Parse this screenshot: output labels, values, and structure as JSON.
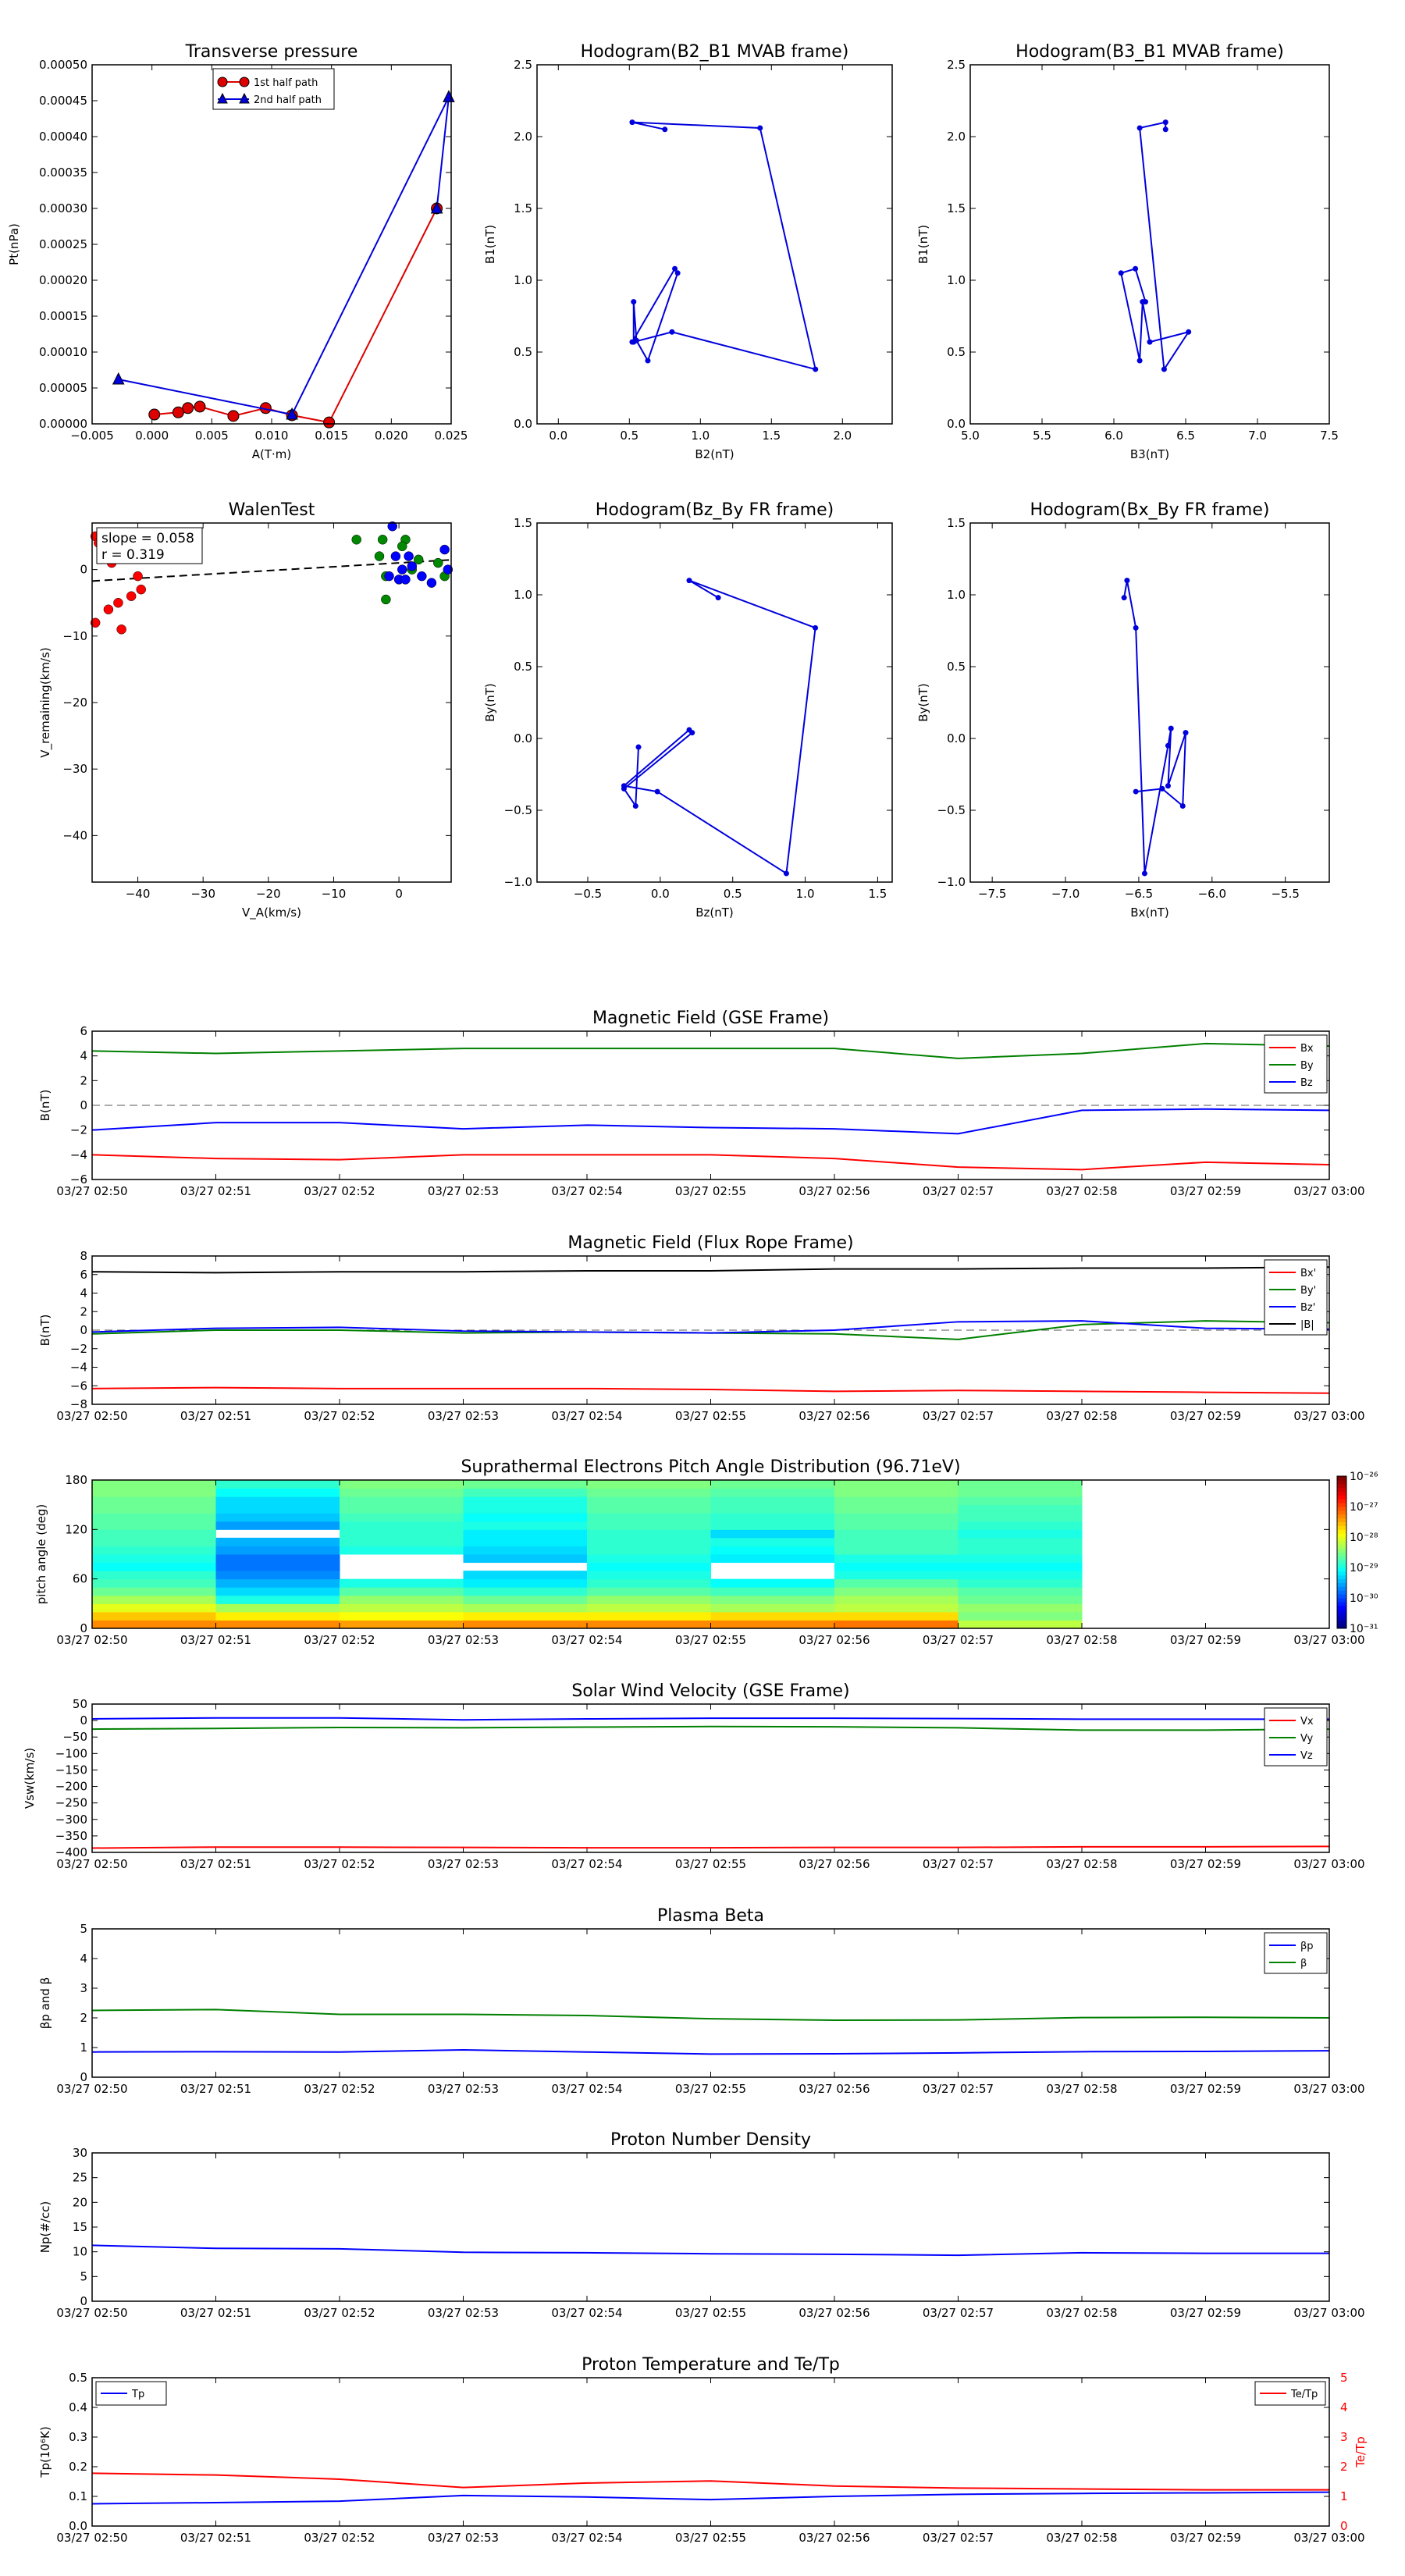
{
  "figure": {
    "time_ticks": [
      "03/27 02:50",
      "03/27 02:51",
      "03/27 02:52",
      "03/27 02:53",
      "03/27 02:54",
      "03/27 02:55",
      "03/27 02:56",
      "03/27 02:57",
      "03/27 02:58",
      "03/27 02:59",
      "03/27 03:00"
    ]
  },
  "chart_data": [
    {
      "id": "transverse",
      "type": "line",
      "title": "Transverse pressure",
      "xlabel": "A(T·m)",
      "ylabel": "Pt(nPa)",
      "xlim": [
        -0.005,
        0.025
      ],
      "ylim": [
        0,
        0.0005
      ],
      "xticks": [
        "−0.005",
        "0.000",
        "0.005",
        "0.010",
        "0.015",
        "0.020",
        "0.025"
      ],
      "yticks": [
        "0.00000",
        "0.00005",
        "0.00010",
        "0.00015",
        "0.00020",
        "0.00025",
        "0.00030",
        "0.00035",
        "0.00040",
        "0.00045",
        "0.00050"
      ],
      "legend": "upper-center",
      "series": [
        {
          "name": "1st half path",
          "color": "#dd0000",
          "marker": "circle",
          "x": [
            0.0238,
            0.0148,
            0.0117,
            0.0095,
            0.0068,
            0.004,
            0.003,
            0.0022,
            0.0002
          ],
          "y": [
            0.0003,
            2e-06,
            1.2e-05,
            2.2e-05,
            1.1e-05,
            2.4e-05,
            2.2e-05,
            1.6e-05,
            1.3e-05
          ]
        },
        {
          "name": "2nd half path",
          "color": "#0000dd",
          "marker": "triangle",
          "x": [
            -0.0028,
            0.0117,
            0.0248,
            0.0238
          ],
          "y": [
            6.2e-05,
            1.3e-05,
            0.000455,
            0.0003
          ]
        }
      ]
    },
    {
      "id": "hodo_b2b1",
      "type": "line",
      "title": "Hodogram(B2_B1 MVAB frame)",
      "xlabel": "B2(nT)",
      "ylabel": "B1(nT)",
      "xlim": [
        -0.15,
        2.35
      ],
      "ylim": [
        0,
        2.5
      ],
      "xticks": [
        "0.0",
        "0.5",
        "1.0",
        "1.5",
        "2.0"
      ],
      "yticks": [
        "0.0",
        "0.5",
        "1.0",
        "1.5",
        "2.0",
        "2.5"
      ],
      "series": [
        {
          "name": "",
          "color": "#0000dd",
          "marker": "dot",
          "x": [
            0.75,
            0.52,
            1.42,
            1.81,
            0.8,
            0.53,
            0.53,
            0.55,
            0.63,
            0.84,
            0.82,
            0.52
          ],
          "y": [
            2.05,
            2.1,
            2.06,
            0.38,
            0.64,
            0.57,
            0.85,
            0.58,
            0.44,
            1.05,
            1.08,
            0.57
          ]
        }
      ]
    },
    {
      "id": "hodo_b3b1",
      "type": "line",
      "title": "Hodogram(B3_B1 MVAB frame)",
      "xlabel": "B3(nT)",
      "ylabel": "B1(nT)",
      "xlim": [
        5.0,
        7.5
      ],
      "ylim": [
        0,
        2.5
      ],
      "xticks": [
        "5.0",
        "5.5",
        "6.0",
        "6.5",
        "7.0",
        "7.5"
      ],
      "yticks": [
        "0.0",
        "0.5",
        "1.0",
        "1.5",
        "2.0",
        "2.5"
      ],
      "series": [
        {
          "name": "",
          "color": "#0000dd",
          "marker": "dot",
          "x": [
            6.36,
            6.36,
            6.18,
            6.35,
            6.52,
            6.25,
            6.2,
            6.18,
            6.05,
            6.15,
            6.22
          ],
          "y": [
            2.05,
            2.1,
            2.06,
            0.38,
            0.64,
            0.57,
            0.85,
            0.44,
            1.05,
            1.08,
            0.85
          ]
        }
      ]
    },
    {
      "id": "walen",
      "type": "scatter",
      "title": "WalenTest",
      "xlabel": "V_A(km/s)",
      "ylabel": "V_remaining(km/s)",
      "xlim": [
        -47,
        8
      ],
      "ylim": [
        -47,
        7
      ],
      "xticks": [
        "−40",
        "−30",
        "−20",
        "−10",
        "0"
      ],
      "yticks": [
        "−40",
        "−30",
        "−20",
        "−10",
        "0"
      ],
      "annotations": [
        "slope = 0.058",
        "r = 0.319"
      ],
      "fit": {
        "slope": 0.058,
        "intercept": 1.0
      },
      "series": [
        {
          "name": "",
          "color": "#ff0000",
          "x": [
            -46.5,
            -46,
            -45.5,
            -44.5,
            -43,
            -42.5,
            -41,
            -40,
            -39.5,
            -46.5,
            -44
          ],
          "y": [
            5,
            4,
            3,
            -6,
            -5,
            -9,
            -4,
            -1,
            -3,
            -8,
            1
          ]
        },
        {
          "name": "",
          "color": "#008800",
          "x": [
            -6.5,
            -2.5,
            -2,
            -2,
            1,
            3,
            6,
            7,
            -3,
            0.5,
            2
          ],
          "y": [
            4.5,
            4.5,
            -1,
            -4.5,
            4.5,
            1.5,
            1,
            -1,
            2,
            3.5,
            0
          ]
        },
        {
          "name": "",
          "color": "#0000ff",
          "x": [
            -1,
            -0.5,
            0,
            0.5,
            1,
            2,
            3.5,
            5,
            7,
            7.5,
            1.5,
            -1.5
          ],
          "y": [
            6.5,
            2,
            -1.5,
            0,
            -1.5,
            0.5,
            -1,
            -2,
            3,
            0,
            2,
            -1
          ]
        }
      ]
    },
    {
      "id": "hodo_bzby",
      "type": "line",
      "title": "Hodogram(Bz_By FR frame)",
      "xlabel": "Bz(nT)",
      "ylabel": "By(nT)",
      "xlim": [
        -0.85,
        1.6
      ],
      "ylim": [
        -1,
        1.5
      ],
      "xticks": [
        "−0.5",
        "0.0",
        "0.5",
        "1.0",
        "1.5"
      ],
      "yticks": [
        "−1.0",
        "−0.5",
        "0.0",
        "0.5",
        "1.0",
        "1.5"
      ],
      "series": [
        {
          "name": "",
          "color": "#0000dd",
          "marker": "dot",
          "x": [
            0.4,
            0.2,
            1.07,
            0.87,
            -0.02,
            -0.25,
            0.2,
            0.22,
            -0.25,
            -0.17,
            -0.15
          ],
          "y": [
            0.98,
            1.1,
            0.77,
            -0.94,
            -0.37,
            -0.33,
            0.06,
            0.04,
            -0.35,
            -0.47,
            -0.06
          ]
        }
      ]
    },
    {
      "id": "hodo_bxby",
      "type": "line",
      "title": "Hodogram(Bx_By FR frame)",
      "xlabel": "Bx(nT)",
      "ylabel": "By(nT)",
      "xlim": [
        -7.65,
        -5.2
      ],
      "ylim": [
        -1,
        1.5
      ],
      "xticks": [
        "−7.5",
        "−7.0",
        "−6.5",
        "−6.0",
        "−5.5"
      ],
      "yticks": [
        "−1.0",
        "−0.5",
        "0.0",
        "0.5",
        "1.0",
        "1.5"
      ],
      "series": [
        {
          "name": "",
          "color": "#0000dd",
          "marker": "dot",
          "x": [
            -6.6,
            -6.58,
            -6.52,
            -6.46,
            -6.3,
            -6.28,
            -6.3,
            -6.18,
            -6.2,
            -6.34,
            -6.52
          ],
          "y": [
            0.98,
            1.1,
            0.77,
            -0.94,
            -0.05,
            0.07,
            -0.33,
            0.04,
            -0.47,
            -0.35,
            -0.37
          ]
        }
      ]
    },
    {
      "id": "mag_gse",
      "type": "line",
      "title": "Magnetic Field (GSE Frame)",
      "ylabel": "B(nT)",
      "ylim": [
        -6,
        6
      ],
      "yticks": [
        "−6",
        "−4",
        "−2",
        "0",
        "2",
        "4",
        "6"
      ],
      "x": [
        0,
        1,
        2,
        3,
        4,
        5,
        6,
        7,
        8,
        9,
        10
      ],
      "legend": "upper-right",
      "series": [
        {
          "name": "Bx",
          "color": "#ff0000",
          "values": [
            -4.0,
            -4.3,
            -4.4,
            -4.0,
            -4.0,
            -4.0,
            -4.3,
            -5.0,
            -5.2,
            -4.6,
            -4.8
          ]
        },
        {
          "name": "By",
          "color": "#008000",
          "values": [
            4.4,
            4.2,
            4.4,
            4.6,
            4.6,
            4.6,
            4.6,
            3.8,
            4.2,
            5.0,
            4.8
          ]
        },
        {
          "name": "Bz",
          "color": "#0000ff",
          "values": [
            -2.0,
            -1.4,
            -1.4,
            -1.9,
            -1.6,
            -1.8,
            -1.9,
            -2.3,
            -0.4,
            -0.3,
            -0.4
          ]
        }
      ]
    },
    {
      "id": "mag_fr",
      "type": "line",
      "title": "Magnetic Field (Flux Rope Frame)",
      "ylabel": "B(nT)",
      "ylim": [
        -8,
        8
      ],
      "yticks": [
        "−8",
        "−6",
        "−4",
        "−2",
        "0",
        "2",
        "4",
        "6",
        "8"
      ],
      "x": [
        0,
        1,
        2,
        3,
        4,
        5,
        6,
        7,
        8,
        9,
        10
      ],
      "legend": "upper-right",
      "series": [
        {
          "name": "Bx'",
          "color": "#ff0000",
          "values": [
            -6.3,
            -6.2,
            -6.3,
            -6.3,
            -6.3,
            -6.4,
            -6.6,
            -6.5,
            -6.6,
            -6.7,
            -6.8
          ]
        },
        {
          "name": "By'",
          "color": "#008000",
          "values": [
            -0.4,
            0.0,
            0.0,
            -0.3,
            -0.2,
            -0.3,
            -0.4,
            -1.0,
            0.6,
            1.0,
            0.8
          ]
        },
        {
          "name": "Bz'",
          "color": "#0000ff",
          "values": [
            -0.2,
            0.2,
            0.3,
            -0.1,
            -0.2,
            -0.3,
            0.0,
            0.9,
            1.0,
            0.2,
            0.1
          ]
        },
        {
          "name": "|B|",
          "color": "#000000",
          "values": [
            6.3,
            6.2,
            6.3,
            6.3,
            6.4,
            6.4,
            6.6,
            6.6,
            6.7,
            6.7,
            6.8
          ]
        }
      ]
    },
    {
      "id": "pad",
      "type": "heatmap",
      "title": "Suprathermal Electrons Pitch Angle Distribution (96.71eV)",
      "ylabel": "pitch angle (deg)",
      "ylim": [
        0,
        180
      ],
      "yticks": [
        "0",
        "60",
        "120",
        "180"
      ],
      "colorbar": {
        "min_exp": -31,
        "max_exp": -26,
        "ticks": [
          "10⁻²⁶",
          "10⁻²⁷",
          "10⁻²⁸",
          "10⁻²⁹",
          "10⁻³⁰",
          "10⁻³¹"
        ]
      },
      "columns": 8,
      "note_values": "log10 flux per column (8 columns × 18 bins of 10°)",
      "values": [
        [
          -27.3,
          -27.3,
          -27.4,
          -27.3,
          -27.3,
          -27.3,
          -27.2,
          -28.2
        ],
        [
          -27.6,
          -27.8,
          -27.9,
          -27.8,
          -27.8,
          -27.7,
          -27.7,
          -28.5
        ],
        [
          -28.0,
          -28.3,
          -28.2,
          -28.3,
          -28.2,
          -28.3,
          -28.2,
          -28.4
        ],
        [
          -28.3,
          -29.0,
          -28.4,
          -28.6,
          -28.4,
          -28.5,
          -28.3,
          -28.6
        ],
        [
          -28.6,
          -29.3,
          -28.7,
          -28.9,
          -28.7,
          -28.8,
          -28.5,
          -28.7
        ],
        [
          -28.8,
          -29.5,
          -29.0,
          -29.2,
          -28.9,
          -29.1,
          -28.7,
          -28.9
        ],
        [
          -28.9,
          -29.7,
          -99,
          -29.3,
          -29.0,
          -99,
          -29.0,
          -29.0
        ],
        [
          -29.1,
          -29.8,
          -99,
          -99,
          -29.1,
          -99,
          -29.1,
          -29.1
        ],
        [
          -29.0,
          -29.8,
          -99,
          -29.4,
          -29.0,
          -29.2,
          -29.0,
          -29.0
        ],
        [
          -28.9,
          -29.6,
          -29.0,
          -29.3,
          -28.9,
          -29.1,
          -28.8,
          -28.9
        ],
        [
          -28.8,
          -29.5,
          -28.9,
          -29.2,
          -28.9,
          -29.0,
          -28.8,
          -28.9
        ],
        [
          -28.8,
          -99,
          -28.9,
          -29.2,
          -28.9,
          -29.3,
          -28.8,
          -29.0
        ],
        [
          -28.7,
          -29.6,
          -28.9,
          -29.0,
          -28.8,
          -28.9,
          -28.7,
          -28.9
        ],
        [
          -28.7,
          -29.4,
          -28.8,
          -29.1,
          -28.8,
          -28.9,
          -28.7,
          -28.8
        ],
        [
          -28.6,
          -29.3,
          -28.7,
          -29.0,
          -28.7,
          -28.8,
          -28.6,
          -28.8
        ],
        [
          -28.6,
          -29.3,
          -28.7,
          -29.0,
          -28.7,
          -28.8,
          -28.6,
          -28.7
        ],
        [
          -28.5,
          -29.1,
          -28.6,
          -28.8,
          -28.6,
          -28.7,
          -28.5,
          -28.6
        ],
        [
          -28.5,
          -28.9,
          -28.5,
          -28.6,
          -28.5,
          -28.6,
          -28.5,
          -28.6
        ]
      ]
    },
    {
      "id": "vsw",
      "type": "line",
      "title": "Solar Wind Velocity (GSE Frame)",
      "ylabel": "Vsw(km/s)",
      "ylim": [
        -400,
        50
      ],
      "yticks": [
        "−400",
        "−350",
        "−300",
        "−250",
        "−200",
        "−150",
        "−100",
        "−50",
        "0",
        "50"
      ],
      "x": [
        0,
        1,
        2,
        3,
        4,
        5,
        6,
        7,
        8,
        9,
        10
      ],
      "legend": "upper-right",
      "series": [
        {
          "name": "Vx",
          "color": "#ff0000",
          "values": [
            -387,
            -384,
            -384,
            -385,
            -386,
            -386,
            -385,
            -385,
            -383,
            -383,
            -382
          ]
        },
        {
          "name": "Vy",
          "color": "#008000",
          "values": [
            -26,
            -24,
            -21,
            -22,
            -20,
            -18,
            -19,
            -22,
            -29,
            -29,
            -26
          ]
        },
        {
          "name": "Vz",
          "color": "#0000ff",
          "values": [
            5,
            8,
            8,
            2,
            5,
            7,
            7,
            6,
            4,
            4,
            4
          ]
        }
      ]
    },
    {
      "id": "beta",
      "type": "line",
      "title": "Plasma Beta",
      "ylabel": "βp and β",
      "ylim": [
        0,
        5
      ],
      "yticks": [
        "0",
        "1",
        "2",
        "3",
        "4",
        "5"
      ],
      "x": [
        0,
        1,
        2,
        3,
        4,
        5,
        6,
        7,
        8,
        9,
        10
      ],
      "legend": "upper-right",
      "series": [
        {
          "name": "βp",
          "color": "#0000ff",
          "values": [
            0.85,
            0.86,
            0.85,
            0.92,
            0.85,
            0.78,
            0.79,
            0.82,
            0.86,
            0.87,
            0.89
          ]
        },
        {
          "name": "β",
          "color": "#008000",
          "values": [
            2.25,
            2.28,
            2.12,
            2.12,
            2.08,
            1.97,
            1.92,
            1.93,
            2.01,
            2.02,
            2.0
          ]
        }
      ]
    },
    {
      "id": "np",
      "type": "line",
      "title": "Proton Number Density",
      "ylabel": "Np(#/cc)",
      "ylim": [
        0,
        30
      ],
      "yticks": [
        "0",
        "5",
        "10",
        "15",
        "20",
        "25",
        "30"
      ],
      "x": [
        0,
        1,
        2,
        3,
        4,
        5,
        6,
        7,
        8,
        9,
        10
      ],
      "series": [
        {
          "name": "",
          "color": "#0000ff",
          "values": [
            11.3,
            10.7,
            10.6,
            9.9,
            9.8,
            9.6,
            9.5,
            9.3,
            9.8,
            9.7,
            9.7
          ]
        }
      ]
    },
    {
      "id": "tp",
      "type": "line",
      "title": "Proton Temperature and Te/Tp",
      "ylabel": "Tp(10⁶K)",
      "y2label": "Te/Tp",
      "ylim": [
        0,
        0.5
      ],
      "yticks": [
        "0.0",
        "0.1",
        "0.2",
        "0.3",
        "0.4",
        "0.5"
      ],
      "y2lim": [
        0,
        5
      ],
      "y2ticks": [
        "0",
        "1",
        "2",
        "3",
        "4",
        "5"
      ],
      "x": [
        0,
        1,
        2,
        3,
        4,
        5,
        6,
        7,
        8,
        9,
        10
      ],
      "series": [
        {
          "name": "Tp",
          "color": "#0000ff",
          "axis": "left",
          "legend": "upper-left",
          "values": [
            0.075,
            0.079,
            0.084,
            0.103,
            0.098,
            0.089,
            0.1,
            0.107,
            0.11,
            0.112,
            0.114
          ]
        },
        {
          "name": "Te/Tp",
          "color": "#ff0000",
          "axis": "right",
          "legend": "upper-right",
          "values": [
            1.78,
            1.72,
            1.58,
            1.3,
            1.45,
            1.52,
            1.35,
            1.28,
            1.25,
            1.22,
            1.22
          ]
        }
      ]
    }
  ]
}
